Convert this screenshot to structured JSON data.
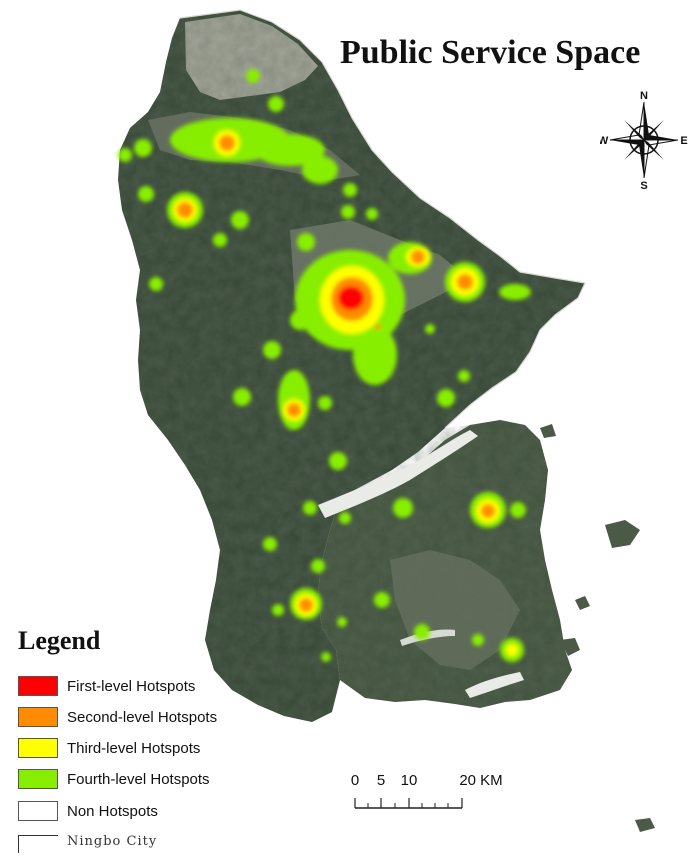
{
  "map": {
    "title": "Public Service Space",
    "compass": {
      "n": "N",
      "s": "S",
      "e": "E",
      "w": "W"
    },
    "legend": {
      "title": "Legend",
      "items": [
        {
          "label": "First-level Hotspots",
          "color": "#ff0000"
        },
        {
          "label": "Second-level Hotspots",
          "color": "#ff8c00"
        },
        {
          "label": "Third-level Hotspots",
          "color": "#ffff00"
        },
        {
          "label": "Fourth-level Hotspots",
          "color": "#88ee00"
        },
        {
          "label": "Non Hotspots",
          "color": "#ffffff"
        }
      ],
      "boundary_label": "Ningbo City"
    },
    "scale": {
      "ticks": [
        "0",
        "5",
        "10",
        "20 KM"
      ]
    },
    "colors": {
      "terrain_dark": "#2e3f2e",
      "terrain_mid": "#4a5b48",
      "urban": "#9a9e92"
    }
  }
}
